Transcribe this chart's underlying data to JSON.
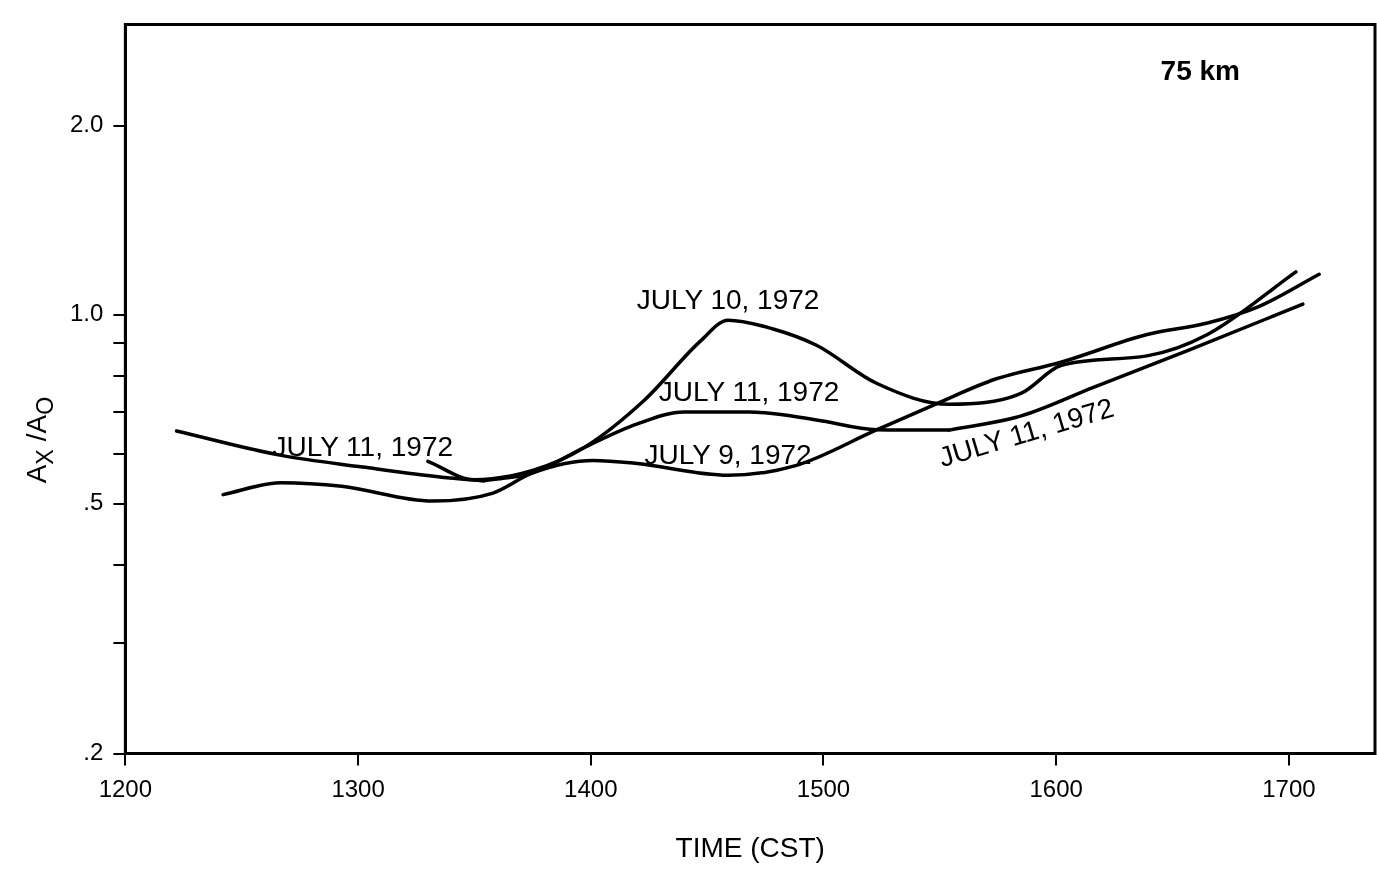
{
  "chart_data": {
    "type": "line",
    "xlabel": "TIME (CST)",
    "ylabel": "A$_{X}$ /A$_{O}$",
    "xlim": [
      1200,
      1737
    ],
    "xticks": [
      1200,
      1300,
      1400,
      1500,
      1600,
      1700
    ],
    "ylim": [
      0.2,
      2.9
    ],
    "yticks": [
      {
        "value": 0.2,
        "label": ".2"
      },
      {
        "value": 0.3,
        "label": null
      },
      {
        "value": 0.4,
        "label": null
      },
      {
        "value": 0.5,
        "label": ".5"
      },
      {
        "value": 0.6,
        "label": null
      },
      {
        "value": 0.7,
        "label": null
      },
      {
        "value": 0.8,
        "label": null
      },
      {
        "value": 0.9,
        "label": null
      },
      {
        "value": 1,
        "label": "1.0"
      },
      {
        "value": 2,
        "label": "2.0"
      }
    ],
    "log": "y",
    "grid": false,
    "legend": false,
    "marker": "none",
    "line_style": "solid",
    "series": [
      {
        "name": "JULY 11, 1972",
        "color": "#000000",
        "x": [
          1222,
          1267,
          1302,
          1336,
          1354
        ],
        "values": [
          0.653,
          0.597,
          0.572,
          0.551,
          0.544
        ]
      },
      {
        "name": "JULY 11, 1972",
        "color": "#000000",
        "x": [
          1354,
          1375,
          1397,
          1420,
          1440,
          1468,
          1497,
          1523,
          1554
        ],
        "values": [
          0.544,
          0.56,
          0.614,
          0.67,
          0.7,
          0.7,
          0.68,
          0.656,
          0.655
        ]
      },
      {
        "name": "JULY 11, 1972",
        "color": "#000000",
        "x": [
          1554,
          1585,
          1616,
          1657,
          1706
        ],
        "values": [
          0.655,
          0.69,
          0.766,
          0.878,
          1.04
        ]
      },
      {
        "name": "JULY 10, 1972",
        "color": "#000000",
        "x": [
          1330,
          1350,
          1375,
          1397,
          1423,
          1447,
          1459,
          1478,
          1497,
          1523,
          1554,
          1585,
          1602,
          1639,
          1665,
          1703
        ],
        "values": [
          0.584,
          0.546,
          0.565,
          0.614,
          0.731,
          0.907,
          0.98,
          0.95,
          0.894,
          0.777,
          0.72,
          0.75,
          0.83,
          0.86,
          0.93,
          1.17
        ]
      },
      {
        "name": "JULY 9, 1972",
        "color": "#000000",
        "x": [
          1242,
          1267,
          1293,
          1332,
          1358,
          1375,
          1401,
          1419,
          1459,
          1488,
          1523,
          1548,
          1574,
          1602,
          1639,
          1665,
          1687,
          1713
        ],
        "values": [
          0.517,
          0.54,
          0.533,
          0.505,
          0.52,
          0.56,
          0.586,
          0.58,
          0.555,
          0.575,
          0.656,
          0.72,
          0.79,
          0.84,
          0.93,
          0.97,
          1.03,
          1.16
        ]
      }
    ],
    "annotations": [
      "75 km"
    ]
  }
}
